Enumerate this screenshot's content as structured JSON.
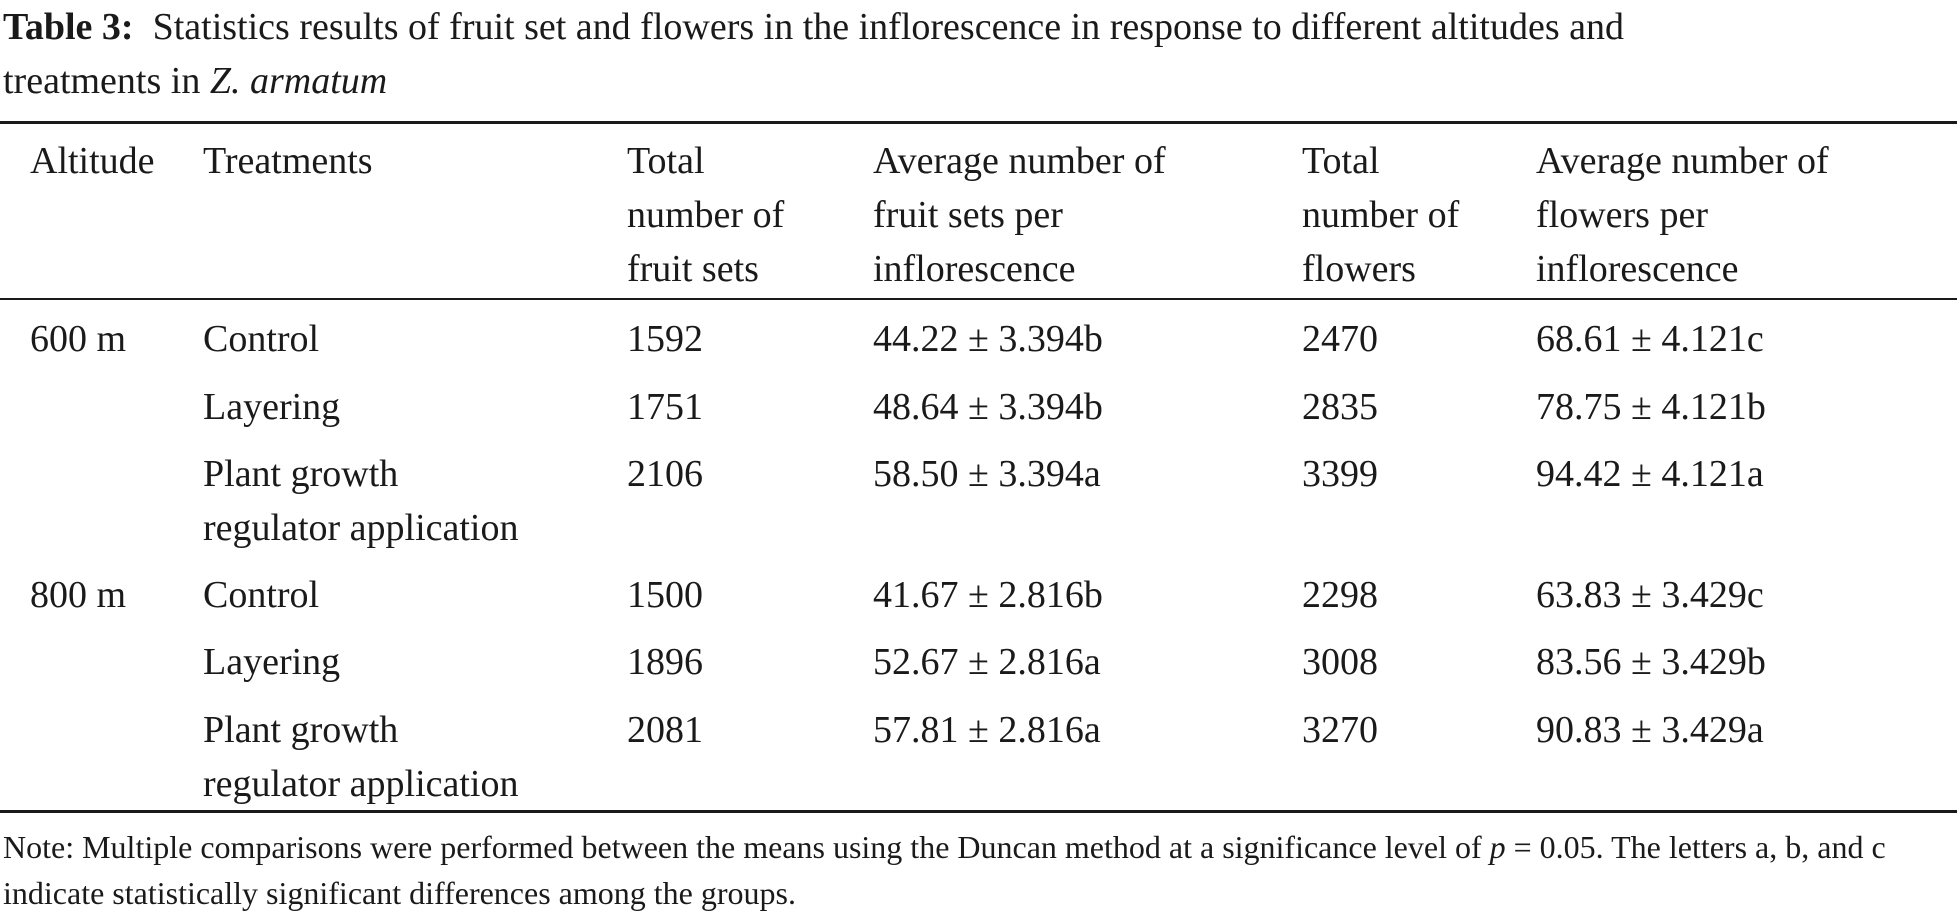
{
  "caption": {
    "label": "Table 3:",
    "text_line1": "Statistics results of fruit set and flowers in the inflorescence in response to different altitudes and",
    "text_line2_prefix": "treatments in ",
    "species": "Z. armatum"
  },
  "table": {
    "headers": {
      "altitude": [
        "Altitude"
      ],
      "treatments": [
        "Treatments"
      ],
      "total_fruit_sets": [
        "Total",
        "number of",
        "fruit sets"
      ],
      "avg_fruit_sets": [
        "Average number of",
        "fruit sets per",
        "inflorescence"
      ],
      "total_flowers": [
        "Total",
        "number of",
        "flowers"
      ],
      "avg_flowers": [
        "Average number of",
        "flowers per",
        "inflorescence"
      ]
    },
    "rows": [
      {
        "altitude": "600 m",
        "treatment": [
          "Control"
        ],
        "total_fruit_sets": "1592",
        "avg_fruit_sets": "44.22 ± 3.394b",
        "total_flowers": "2470",
        "avg_flowers": "68.61 ± 4.121c"
      },
      {
        "altitude": "",
        "treatment": [
          "Layering"
        ],
        "total_fruit_sets": "1751",
        "avg_fruit_sets": "48.64 ± 3.394b",
        "total_flowers": "2835",
        "avg_flowers": "78.75 ± 4.121b"
      },
      {
        "altitude": "",
        "treatment": [
          "Plant growth",
          "regulator application"
        ],
        "total_fruit_sets": "2106",
        "avg_fruit_sets": "58.50 ± 3.394a",
        "total_flowers": "3399",
        "avg_flowers": "94.42 ± 4.121a"
      },
      {
        "altitude": "800 m",
        "treatment": [
          "Control"
        ],
        "total_fruit_sets": "1500",
        "avg_fruit_sets": "41.67 ± 2.816b",
        "total_flowers": "2298",
        "avg_flowers": "63.83 ± 3.429c"
      },
      {
        "altitude": "",
        "treatment": [
          "Layering"
        ],
        "total_fruit_sets": "1896",
        "avg_fruit_sets": "52.67 ± 2.816a",
        "total_flowers": "3008",
        "avg_flowers": "83.56 ± 3.429b"
      },
      {
        "altitude": "",
        "treatment": [
          "Plant growth",
          "regulator application"
        ],
        "total_fruit_sets": "2081",
        "avg_fruit_sets": "57.81 ± 2.816a",
        "total_flowers": "3270",
        "avg_flowers": "90.83 ± 3.429a"
      }
    ]
  },
  "note": {
    "part1": "Note: Multiple comparisons were performed between the means using the Duncan method at a significance level of ",
    "p_symbol": "p",
    "part2": " = 0.05. The letters a, b, and c indicate statistically significant differences among the groups."
  }
}
